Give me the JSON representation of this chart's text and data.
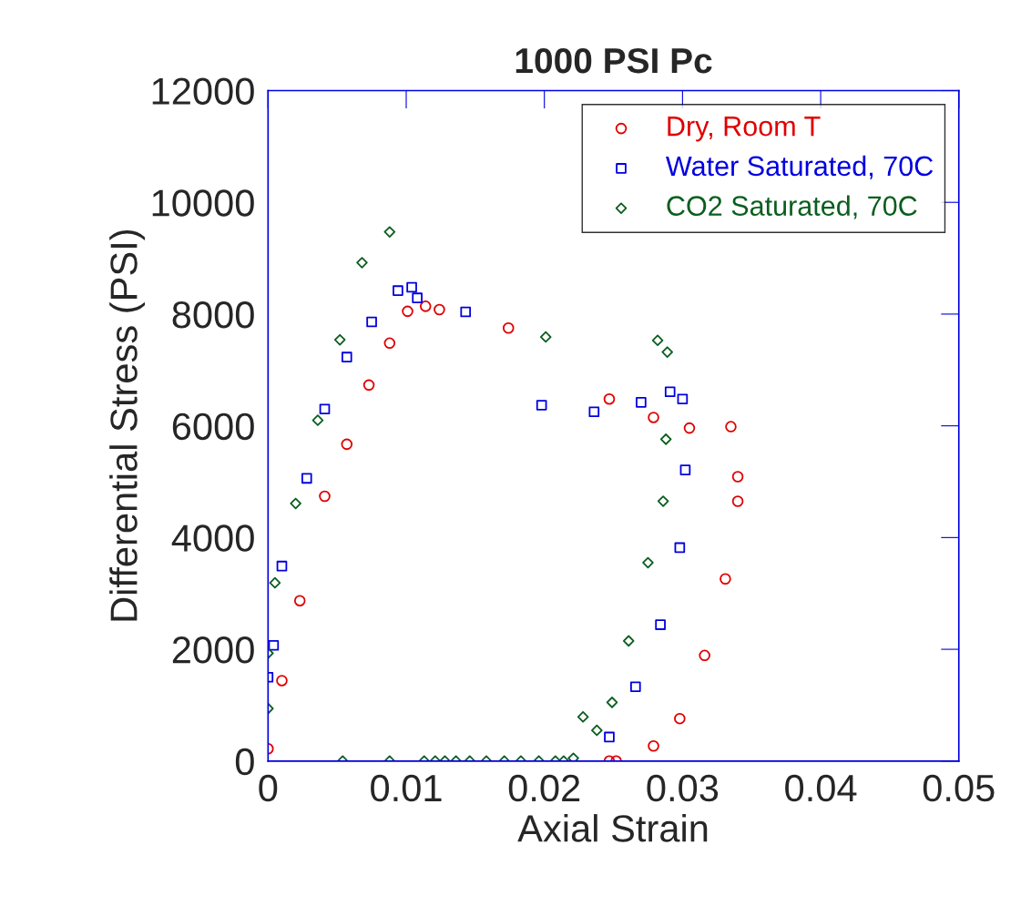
{
  "chart_data": {
    "type": "scatter",
    "title": "1000 PSI Pc",
    "xlabel": "Axial Strain",
    "ylabel": "Differential Stress (PSI)",
    "xlim": [
      0,
      0.05
    ],
    "xticks": [
      0,
      0.01,
      0.02,
      0.03,
      0.04,
      0.05
    ],
    "ylim": [
      0,
      12000
    ],
    "yticks": [
      0,
      2000,
      4000,
      6000,
      8000,
      10000,
      12000
    ],
    "grid": false,
    "legend": "top right",
    "series": [
      {
        "name": "Dry, Room T",
        "color": "#e00000",
        "marker": "circle",
        "x": [
          0,
          0.001,
          0.0023,
          0.0041,
          0.0057,
          0.0073,
          0.0088,
          0.0101,
          0.0114,
          0.0124,
          0.0174,
          0.0247,
          0.0279,
          0.0305,
          0.0335,
          0.034,
          0.034,
          0.0331,
          0.0316,
          0.0298,
          0.0279,
          0.0252,
          0.0247
        ],
        "values": [
          220,
          1440,
          2870,
          4740,
          5670,
          6730,
          7480,
          8050,
          8140,
          8080,
          7750,
          6480,
          6150,
          5960,
          5985,
          5090,
          4650,
          3260,
          1890,
          760,
          270,
          0,
          0
        ]
      },
      {
        "name": "Water Saturated, 70C",
        "color": "#0000e0",
        "marker": "square",
        "x": [
          0,
          0.0004,
          0.001,
          0.0028,
          0.0041,
          0.0057,
          0.0075,
          0.0094,
          0.0104,
          0.0108,
          0.0143,
          0.0198,
          0.0236,
          0.027,
          0.0291,
          0.03,
          0.0302,
          0.0298,
          0.0284,
          0.0266,
          0.0247
        ],
        "values": [
          1500,
          2070,
          3490,
          5060,
          6300,
          7230,
          7860,
          8420,
          8480,
          8290,
          8040,
          6370,
          6250,
          6420,
          6610,
          6480,
          5210,
          3820,
          2440,
          1330,
          430
        ]
      },
      {
        "name": "CO2 Saturated, 70C",
        "color": "#0a5e1e",
        "marker": "diamond",
        "x": [
          0,
          0,
          0.0005,
          0.002,
          0.0036,
          0.0052,
          0.0068,
          0.0088,
          0.0054,
          0.0088,
          0.0113,
          0.0121,
          0.0128,
          0.0136,
          0.0146,
          0.0158,
          0.0171,
          0.0183,
          0.0196,
          0.0208,
          0.0214,
          0.0221,
          0.0228,
          0.0238,
          0.0249,
          0.0261,
          0.0275,
          0.0286,
          0.0288,
          0.0289,
          0.0282,
          0.0201
        ],
        "values": [
          940,
          1930,
          3190,
          4610,
          6100,
          7540,
          8920,
          9470,
          0,
          0,
          0,
          0,
          0,
          0,
          0,
          0,
          0,
          0,
          0,
          0,
          0,
          50,
          790,
          550,
          1050,
          2150,
          3550,
          4650,
          5760,
          7320,
          7530,
          7590
        ]
      }
    ]
  }
}
